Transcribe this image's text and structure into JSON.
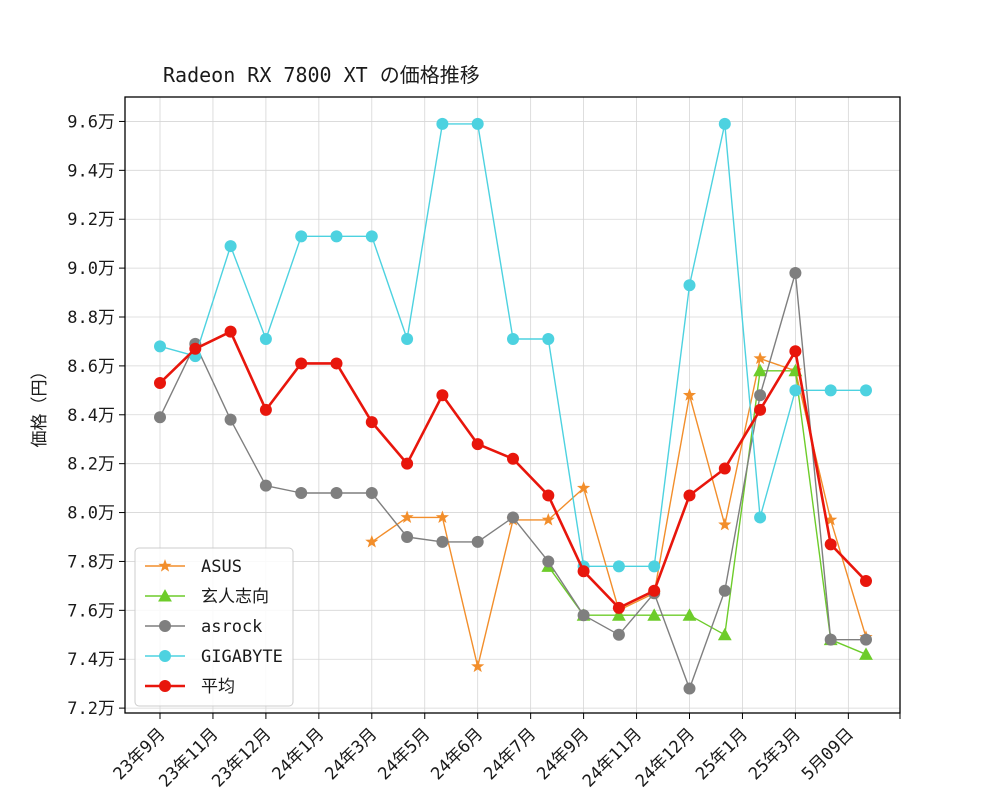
{
  "chart_data": {
    "type": "line",
    "title": "Radeon RX 7800 XT の価格推移",
    "ylabel": "価格（円）",
    "xlabel": "",
    "ylim": [
      71800,
      97000
    ],
    "grid": true,
    "legend_position": "lower-left",
    "x_tick_labels": [
      "23年9月",
      "23年11月",
      "23年12月",
      "24年1月",
      "24年3月",
      "24年5月",
      "24年6月",
      "24年7月",
      "24年9月",
      "24年11月",
      "24年12月",
      "25年1月",
      "25年3月",
      "5月09日"
    ],
    "y_ticks": [
      72000,
      74000,
      76000,
      78000,
      80000,
      82000,
      84000,
      86000,
      88000,
      90000,
      92000,
      94000,
      96000
    ],
    "y_tick_labels": [
      "7.2万",
      "7.4万",
      "7.6万",
      "7.8万",
      "8.0万",
      "8.2万",
      "8.4万",
      "8.6万",
      "8.8万",
      "9.0万",
      "9.2万",
      "9.4万",
      "9.6万"
    ],
    "x_points": 21,
    "series": [
      {
        "name": "ASUS",
        "color": "#f28e2b",
        "marker": "star",
        "linewidth": 1.4,
        "values": [
          null,
          null,
          null,
          null,
          null,
          null,
          78800,
          79800,
          79800,
          73700,
          79700,
          79700,
          81000,
          76000,
          76700,
          84800,
          79500,
          86300,
          85800,
          79700,
          74900
        ]
      },
      {
        "name": "玄人志向",
        "color": "#6dcc2a",
        "marker": "triangle",
        "linewidth": 1.4,
        "values": [
          null,
          null,
          null,
          null,
          null,
          null,
          null,
          null,
          null,
          null,
          null,
          77800,
          75800,
          75800,
          75800,
          75800,
          75000,
          85800,
          85800,
          74800,
          74200
        ]
      },
      {
        "name": "asrock",
        "color": "#7f7f7f",
        "marker": "circle",
        "linewidth": 1.4,
        "values": [
          83900,
          86900,
          83800,
          81100,
          80800,
          80800,
          80800,
          79000,
          78800,
          78800,
          79800,
          78000,
          75800,
          75000,
          76700,
          72800,
          76800,
          84800,
          89800,
          74800,
          74800
        ]
      },
      {
        "name": "GIGABYTE",
        "color": "#4dd2e0",
        "marker": "circle",
        "linewidth": 1.4,
        "values": [
          86800,
          86400,
          90900,
          87100,
          91300,
          91300,
          91300,
          87100,
          95900,
          95900,
          87100,
          87100,
          77800,
          77800,
          77800,
          89300,
          95900,
          79800,
          85000,
          85000,
          85000
        ]
      },
      {
        "name": "平均",
        "color": "#e8160c",
        "marker": "circle",
        "linewidth": 2.6,
        "values": [
          85300,
          86700,
          87400,
          84200,
          86100,
          86100,
          83700,
          82000,
          84800,
          82800,
          82200,
          80700,
          77600,
          76100,
          76800,
          80700,
          81800,
          84200,
          86600,
          78700,
          77200
        ]
      }
    ]
  }
}
